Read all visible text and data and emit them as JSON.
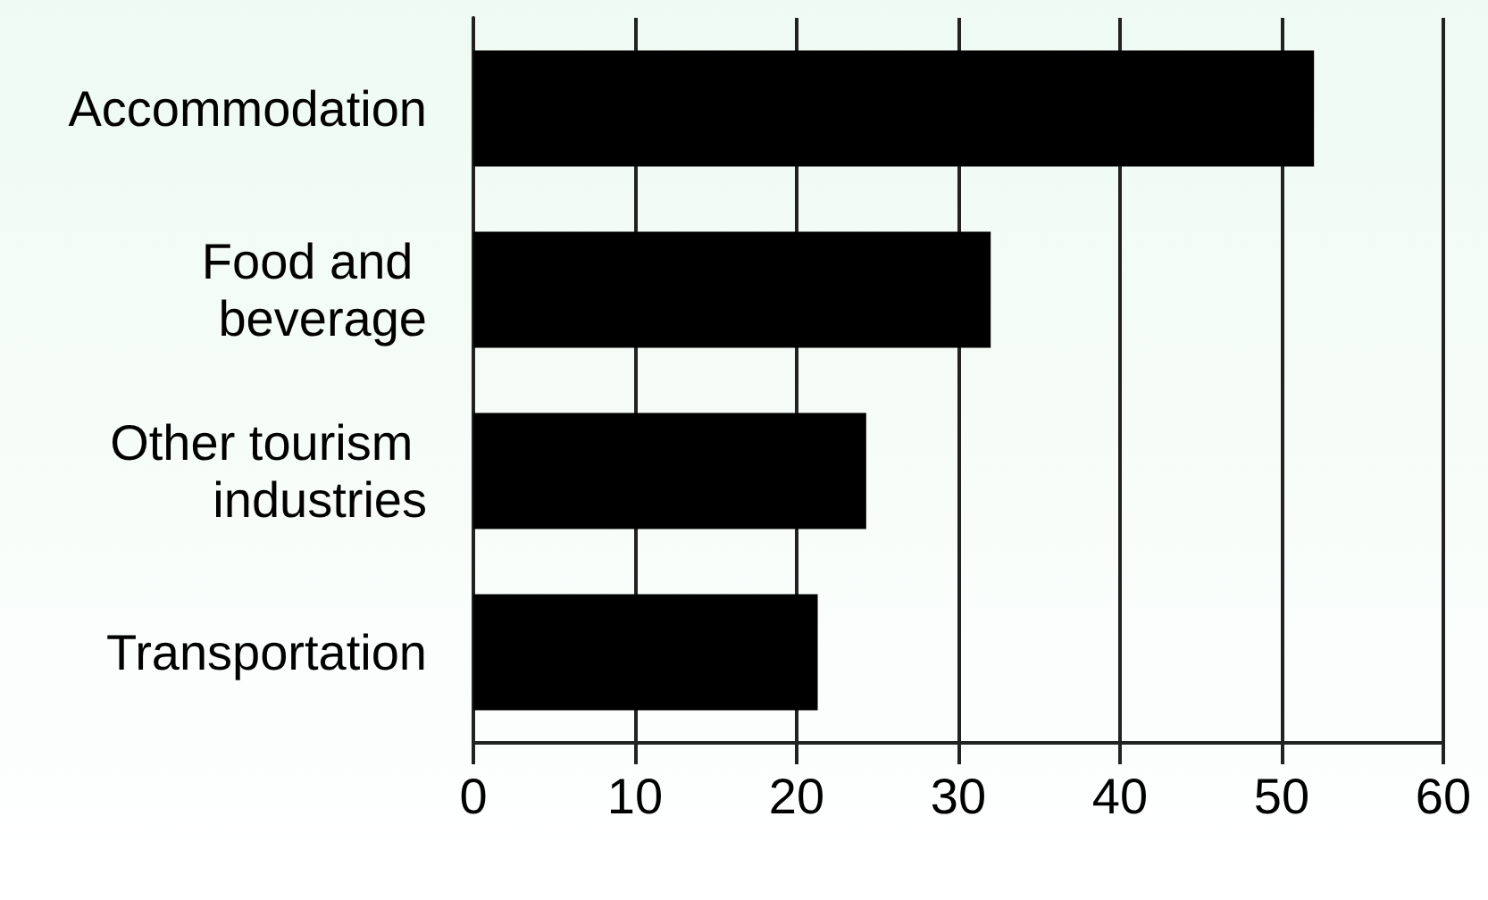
{
  "chart_data": {
    "type": "bar",
    "orientation": "horizontal",
    "categories": [
      "Accommodation",
      "Food and beverage",
      "Other tourism industries",
      "Transportation"
    ],
    "values": [
      52,
      32,
      24.3,
      21.3
    ],
    "color": "#000000",
    "xlim": [
      0,
      60
    ],
    "xticks": [
      0,
      10,
      20,
      30,
      40,
      50,
      60
    ],
    "grid": "x"
  }
}
